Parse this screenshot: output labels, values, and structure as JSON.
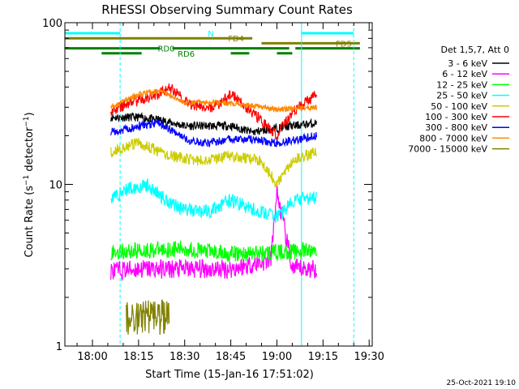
{
  "chart_data": {
    "type": "line",
    "title": "RHESSI Observing Summary Count Rates",
    "xlabel": "Start Time (15-Jan-16 17:51:02)",
    "ylabel_main": "Count Rate (s",
    "ylabel_sup1": "−1",
    "ylabel_mid": " detector",
    "ylabel_sup2": "−1",
    "ylabel_end": ")",
    "yscale": "log",
    "ylim": [
      1,
      100
    ],
    "y_ticks": [
      {
        "value": 1,
        "label": "1"
      },
      {
        "value": 10,
        "label": "10"
      },
      {
        "value": 100,
        "label": "100"
      }
    ],
    "xlim": [
      "17:51:02",
      "19:31:00"
    ],
    "x_ticks": [
      {
        "value": "18:00",
        "label": "18:00"
      },
      {
        "value": "18:15",
        "label": "18:15"
      },
      {
        "value": "18:30",
        "label": "18:30"
      },
      {
        "value": "18:45",
        "label": "18:45"
      },
      {
        "value": "19:00",
        "label": "19:00"
      },
      {
        "value": "19:15",
        "label": "19:15"
      },
      {
        "value": "19:30",
        "label": "19:30"
      }
    ],
    "data_start": "18:06",
    "data_end": "19:13",
    "legend_header": "Det 1,5,7, Att 0",
    "legend_position": "right",
    "series": [
      {
        "name": "3 - 6 keV",
        "color": "#000000",
        "x": [
          "18:06",
          "18:15",
          "18:22",
          "18:30",
          "18:38",
          "18:45",
          "18:52",
          "18:58",
          "19:05",
          "19:13"
        ],
        "y": [
          26,
          26,
          25,
          23,
          23,
          23,
          21,
          22,
          23,
          24
        ],
        "noise": 0.06
      },
      {
        "name": "6 - 12 keV",
        "color": "#ff00ff",
        "x": [
          "18:06",
          "18:15",
          "18:30",
          "18:45",
          "18:58",
          "19:00",
          "19:05",
          "19:13"
        ],
        "y": [
          2.9,
          3.0,
          3.0,
          3.0,
          3.4,
          9.0,
          3.0,
          3.0
        ],
        "noise": 0.14
      },
      {
        "name": "12 - 25 keV",
        "color": "#00ff00",
        "x": [
          "18:06",
          "18:15",
          "18:30",
          "18:45",
          "19:00",
          "19:13"
        ],
        "y": [
          3.8,
          3.9,
          4.0,
          3.7,
          3.8,
          3.9
        ],
        "noise": 0.12
      },
      {
        "name": "25 - 50 keV",
        "color": "#00ffff",
        "x": [
          "18:06",
          "18:12",
          "18:18",
          "18:24",
          "18:30",
          "18:38",
          "18:45",
          "18:52",
          "19:00",
          "19:06",
          "19:13"
        ],
        "y": [
          8.2,
          9.5,
          9.8,
          8.0,
          7.0,
          6.8,
          8.0,
          7.0,
          6.3,
          8.0,
          8.3
        ],
        "noise": 0.1
      },
      {
        "name": "50 - 100 keV",
        "color": "#cccc00",
        "x": [
          "18:06",
          "18:15",
          "18:25",
          "18:35",
          "18:45",
          "18:55",
          "19:00",
          "19:05",
          "19:13"
        ],
        "y": [
          16,
          18,
          15,
          14,
          15,
          14,
          10,
          14,
          16
        ],
        "noise": 0.08
      },
      {
        "name": "100 - 300 keV",
        "color": "#ff0000",
        "x": [
          "18:06",
          "18:12",
          "18:20",
          "18:25",
          "18:32",
          "18:40",
          "18:45",
          "18:52",
          "19:00",
          "19:05",
          "19:13"
        ],
        "y": [
          28,
          32,
          35,
          40,
          31,
          30,
          36,
          28,
          20,
          28,
          36
        ],
        "noise": 0.08
      },
      {
        "name": "300 - 800 keV",
        "color": "#0000ff",
        "x": [
          "18:06",
          "18:15",
          "18:22",
          "18:30",
          "18:38",
          "18:45",
          "18:52",
          "19:00",
          "19:13"
        ],
        "y": [
          21,
          23,
          24,
          19,
          18,
          19,
          19,
          18,
          20
        ],
        "noise": 0.06
      },
      {
        "name": "800 - 7000 keV",
        "color": "#ff8800",
        "x": [
          "18:06",
          "18:15",
          "18:22",
          "18:30",
          "18:45",
          "19:00",
          "19:13"
        ],
        "y": [
          30,
          36,
          38,
          32,
          32,
          29,
          30
        ],
        "noise": 0.04
      },
      {
        "name": "7000 - 15000 keV",
        "color": "#808000",
        "x": [
          "18:11",
          "18:18",
          "18:25"
        ],
        "y": [
          1.5,
          1.5,
          1.5
        ],
        "noise": 0.25
      }
    ],
    "flag_bars": [
      {
        "label": "N",
        "color": "#00ffff",
        "y_offset": 0,
        "segments": [
          [
            "17:51:02",
            "18:09"
          ],
          [
            "19:08",
            "19:25"
          ]
        ]
      },
      {
        "label": "FD4",
        "color": "#808000",
        "y_offset": 1,
        "segments": [
          [
            "17:51:02",
            "18:52"
          ]
        ]
      },
      {
        "label": "FD5",
        "color": "#808000",
        "y_offset": 2,
        "segments": [
          [
            "18:55",
            "19:27"
          ]
        ]
      },
      {
        "label": "RD0",
        "color": "#008000",
        "y_offset": 3,
        "segments": [
          [
            "17:51:02",
            "18:22"
          ],
          [
            "18:26",
            "19:04"
          ],
          [
            "19:06",
            "19:27"
          ]
        ]
      },
      {
        "label": "RD6",
        "color": "#008000",
        "y_offset": 4,
        "segments": [
          [
            "18:03",
            "18:16"
          ],
          [
            "18:45",
            "18:51"
          ],
          [
            "19:00",
            "19:05"
          ]
        ]
      }
    ],
    "vlines": [
      {
        "x": "17:51:02",
        "color": "#00ffff",
        "dashed": false
      },
      {
        "x": "18:09",
        "color": "#00ffff",
        "dashed": true
      },
      {
        "x": "19:08",
        "color": "#00ffff",
        "dashed": false
      },
      {
        "x": "19:25",
        "color": "#00ffff",
        "dashed": true
      }
    ],
    "footer_date": "25-Oct-2021 19:10"
  }
}
